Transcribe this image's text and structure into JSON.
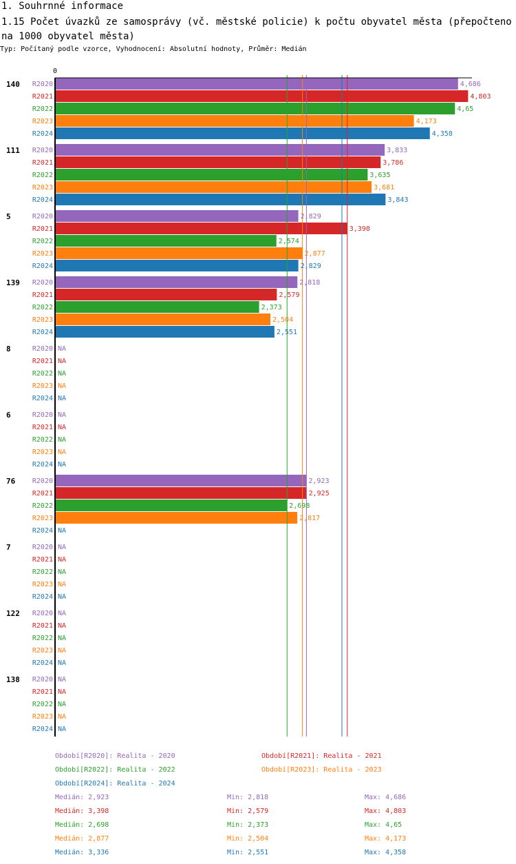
{
  "header": {
    "section_title": "1. Souhrnné informace",
    "chart_title": "1.15 Počet úvazků ze samosprávy (vč. městské policie) k počtu obyvatel města (přepočteno na 1000 obyvatel města)",
    "subtitle": "Typ: Počítaný podle vzorce, Vyhodnocení: Absolutní hodnoty, Průměr: Medián"
  },
  "chart_data": {
    "type": "bar",
    "orientation": "horizontal",
    "x_tick_label": "0",
    "xlim": [
      0,
      4.85
    ],
    "na_label": "NA",
    "categories": [
      "140",
      "111",
      "5",
      "139",
      "8",
      "6",
      "76",
      "7",
      "122",
      "138"
    ],
    "series": [
      {
        "name": "R2020",
        "color": "#9467bd",
        "values": [
          4.686,
          3.833,
          2.829,
          2.818,
          null,
          null,
          2.923,
          null,
          null,
          null
        ],
        "labels": [
          "4,686",
          "3,833",
          "2,829",
          "2,818",
          "NA",
          "NA",
          "2,923",
          "NA",
          "NA",
          "NA"
        ]
      },
      {
        "name": "R2021",
        "color": "#d62728",
        "values": [
          4.803,
          3.786,
          3.398,
          2.579,
          null,
          null,
          2.925,
          null,
          null,
          null
        ],
        "labels": [
          "4,803",
          "3,786",
          "3,398",
          "2,579",
          "NA",
          "NA",
          "2,925",
          "NA",
          "NA",
          "NA"
        ]
      },
      {
        "name": "R2022",
        "color": "#2ca02c",
        "values": [
          4.65,
          3.635,
          2.574,
          2.373,
          null,
          null,
          2.698,
          null,
          null,
          null
        ],
        "labels": [
          "4,65",
          "3,635",
          "2,574",
          "2,373",
          "NA",
          "NA",
          "2,698",
          "NA",
          "NA",
          "NA"
        ]
      },
      {
        "name": "R2023",
        "color": "#ff7f0e",
        "values": [
          4.173,
          3.681,
          2.877,
          2.504,
          null,
          null,
          2.817,
          null,
          null,
          null
        ],
        "labels": [
          "4,173",
          "3,681",
          "2,877",
          "2,504",
          "NA",
          "NA",
          "2,817",
          "NA",
          "NA",
          "NA"
        ]
      },
      {
        "name": "R2024",
        "color": "#1f77b4",
        "values": [
          4.358,
          3.843,
          2.829,
          2.551,
          null,
          null,
          null,
          null,
          null,
          null
        ],
        "labels": [
          "4,358",
          "3,843",
          "2,829",
          "2,551",
          "NA",
          "NA",
          "NA",
          "NA",
          "NA",
          "NA"
        ]
      }
    ],
    "reference_lines": [
      {
        "series": "R2020",
        "value": 2.923
      },
      {
        "series": "R2021",
        "value": 3.398
      },
      {
        "series": "R2022",
        "value": 2.698
      },
      {
        "series": "R2023",
        "value": 2.877
      },
      {
        "series": "R2024",
        "value": 3.336
      }
    ],
    "legend": [
      {
        "color": "#9467bd",
        "text": "Období[R2020]: Realita - 2020"
      },
      {
        "color": "#d62728",
        "text": "Období[R2021]: Realita - 2021"
      },
      {
        "color": "#2ca02c",
        "text": "Období[R2022]: Realita - 2022"
      },
      {
        "color": "#ff7f0e",
        "text": "Období[R2023]: Realita - 2023"
      },
      {
        "color": "#1f77b4",
        "text": "Období[R2024]: Realita - 2024"
      }
    ],
    "stats": [
      {
        "color": "#9467bd",
        "median": "Medián: 2,923",
        "min": "Min: 2,818",
        "max": "Max: 4,686"
      },
      {
        "color": "#d62728",
        "median": "Medián: 3,398",
        "min": "Min: 2,579",
        "max": "Max: 4,803"
      },
      {
        "color": "#2ca02c",
        "median": "Medián: 2,698",
        "min": "Min: 2,373",
        "max": "Max: 4,65"
      },
      {
        "color": "#ff7f0e",
        "median": "Medián: 2,877",
        "min": "Min: 2,504",
        "max": "Max: 4,173"
      },
      {
        "color": "#1f77b4",
        "median": "Medián: 3,336",
        "min": "Min: 2,551",
        "max": "Max: 4,358"
      }
    ]
  }
}
